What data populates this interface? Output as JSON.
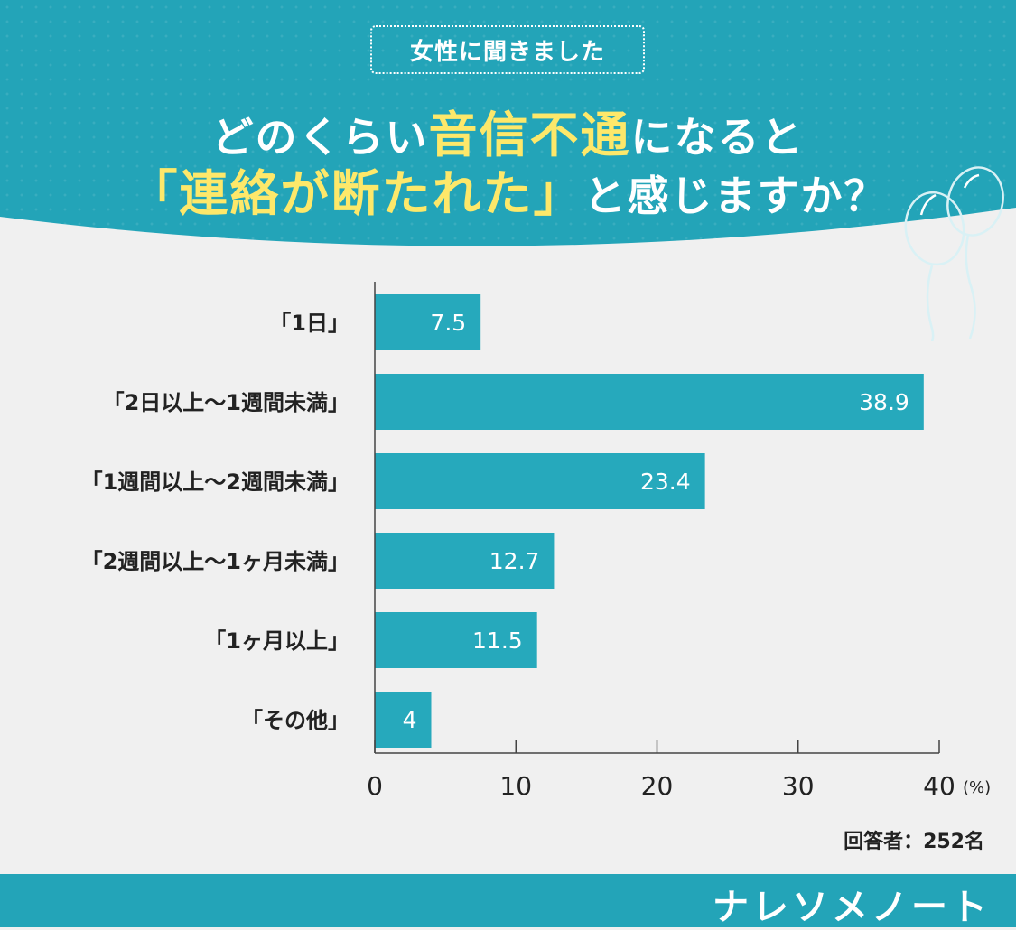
{
  "header": {
    "badge": "女性に聞きました",
    "title_line1_pre": "どのくらい",
    "title_line1_highlight": "音信不通",
    "title_line1_post": "になると",
    "title_line2_highlight": "「連絡が断たれた」",
    "title_line2_post": "と感じますか？"
  },
  "chart_data": {
    "type": "bar",
    "orientation": "horizontal",
    "categories": [
      "「1日」",
      "「2日以上～1週間未満」",
      "「1週間以上～2週間未満」",
      "「2週間以上～1ヶ月未満」",
      "「1ヶ月以上」",
      "「その他」"
    ],
    "values": [
      7.5,
      38.9,
      23.4,
      12.7,
      11.5,
      4
    ],
    "value_labels": [
      "7.5",
      "38.9",
      "23.4",
      "12.7",
      "11.5",
      "4"
    ],
    "xlim": [
      0,
      40
    ],
    "xticks": [
      0,
      10,
      20,
      30,
      40
    ],
    "xtick_labels": [
      "0",
      "10",
      "20",
      "30",
      "40"
    ],
    "unit": "(%)",
    "grid": false,
    "bar_color": "#26a9bc"
  },
  "note": "回答者：252名",
  "brand": "ナレソメノート",
  "colors": {
    "primary": "#23a4b8",
    "highlight": "#fde86a",
    "background": "#f0f0f0",
    "text": "#222222"
  }
}
